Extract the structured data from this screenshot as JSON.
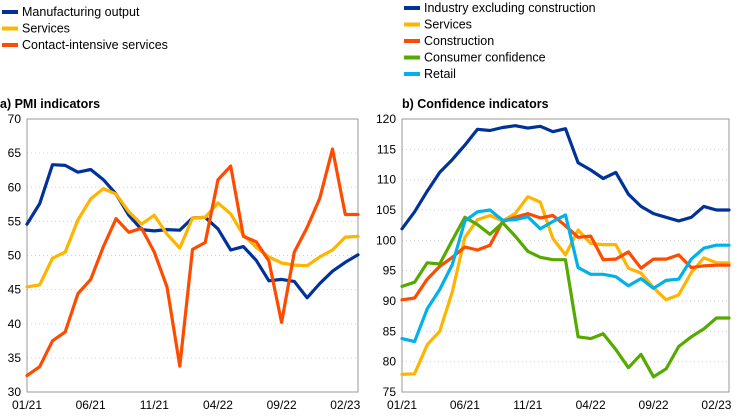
{
  "chart_data": [
    {
      "type": "line",
      "title": "a) PMI indicators",
      "ylim": [
        30,
        70
      ],
      "yticks": [
        30,
        35,
        40,
        45,
        50,
        55,
        60,
        65,
        70
      ],
      "x_labels": [
        "01/21",
        "06/21",
        "11/21",
        "04/22",
        "09/22",
        "02/23"
      ],
      "grid": true,
      "legend": "top-left",
      "series": [
        {
          "name": "Manufacturing output",
          "color": "#003299",
          "values": [
            54.6,
            57.6,
            63.3,
            63.2,
            62.2,
            62.6,
            61.1,
            59.0,
            55.9,
            53.8,
            53.6,
            53.8,
            53.7,
            55.5,
            55.6,
            53.9,
            50.8,
            51.3,
            49.3,
            46.3,
            46.5,
            46.2,
            43.8,
            45.9,
            47.7,
            49.0,
            50.1
          ]
        },
        {
          "name": "Services",
          "color": "#FFB400",
          "values": [
            45.4,
            45.7,
            49.6,
            50.5,
            55.2,
            58.3,
            59.8,
            59.0,
            56.4,
            54.6,
            55.9,
            53.1,
            51.1,
            55.5,
            55.6,
            57.7,
            56.1,
            53.0,
            51.2,
            49.8,
            48.9,
            48.6,
            48.5,
            49.8,
            50.8,
            52.7,
            52.8
          ]
        },
        {
          "name": "Contact-intensive services",
          "color": "#FF4B00",
          "values": [
            32.4,
            33.7,
            37.5,
            38.8,
            44.4,
            46.5,
            51.3,
            55.4,
            53.4,
            54.0,
            50.5,
            45.4,
            33.8,
            50.9,
            51.9,
            61.1,
            63.1,
            52.8,
            52.0,
            49.2,
            40.2,
            50.5,
            54.1,
            58.4,
            65.6,
            56.0,
            56.0
          ]
        }
      ]
    },
    {
      "type": "line",
      "title": "b) Confidence indicators",
      "ylim": [
        75,
        120
      ],
      "yticks": [
        75,
        80,
        85,
        90,
        95,
        100,
        105,
        110,
        115,
        120
      ],
      "x_labels": [
        "01/21",
        "06/21",
        "11/21",
        "04/22",
        "09/22",
        "02/23"
      ],
      "grid": true,
      "legend": "top-left",
      "series": [
        {
          "name": "Industry excluding construction",
          "color": "#003299",
          "values": [
            101.9,
            104.7,
            108.1,
            111.2,
            113.3,
            115.7,
            118.3,
            118.1,
            118.6,
            118.9,
            118.5,
            118.8,
            117.9,
            118.4,
            112.8,
            111.6,
            110.2,
            111.2,
            107.6,
            105.6,
            104.4,
            103.8,
            103.2,
            103.8,
            105.6,
            105.0,
            105.0
          ]
        },
        {
          "name": "Services",
          "color": "#FFB400",
          "values": [
            77.9,
            78.0,
            82.8,
            85.0,
            91.5,
            100.5,
            103.4,
            104.1,
            103.2,
            104.4,
            107.2,
            106.3,
            100.3,
            97.6,
            101.7,
            99.5,
            99.3,
            99.3,
            95.4,
            94.6,
            92.2,
            90.2,
            91.0,
            94.7,
            97.1,
            96.3,
            96.3
          ]
        },
        {
          "name": "Construction",
          "color": "#FF4B00",
          "values": [
            90.2,
            90.5,
            93.6,
            95.7,
            97.2,
            98.9,
            98.4,
            99.2,
            103.1,
            103.8,
            104.4,
            103.7,
            104.1,
            102.4,
            100.5,
            100.7,
            96.8,
            96.9,
            98.1,
            95.4,
            96.9,
            96.9,
            97.6,
            95.5,
            95.8,
            95.9,
            95.9
          ]
        },
        {
          "name": "Consumer confidence",
          "color": "#55AA00",
          "values": [
            92.4,
            93.1,
            96.3,
            96.1,
            100.0,
            103.8,
            102.6,
            101.0,
            102.9,
            100.7,
            98.2,
            97.2,
            96.8,
            96.8,
            84.1,
            83.8,
            84.6,
            82.0,
            79.0,
            81.2,
            77.5,
            78.8,
            82.5,
            84.1,
            85.4,
            87.2,
            87.2
          ]
        },
        {
          "name": "Retail",
          "color": "#00B1EA",
          "values": [
            83.8,
            83.3,
            88.7,
            91.9,
            96.0,
            103.2,
            104.7,
            105.0,
            103.3,
            103.4,
            103.9,
            101.9,
            103.1,
            104.2,
            95.5,
            94.4,
            94.4,
            94.0,
            92.5,
            93.7,
            92.1,
            93.4,
            93.6,
            96.9,
            98.7,
            99.2,
            99.2
          ]
        }
      ]
    }
  ]
}
